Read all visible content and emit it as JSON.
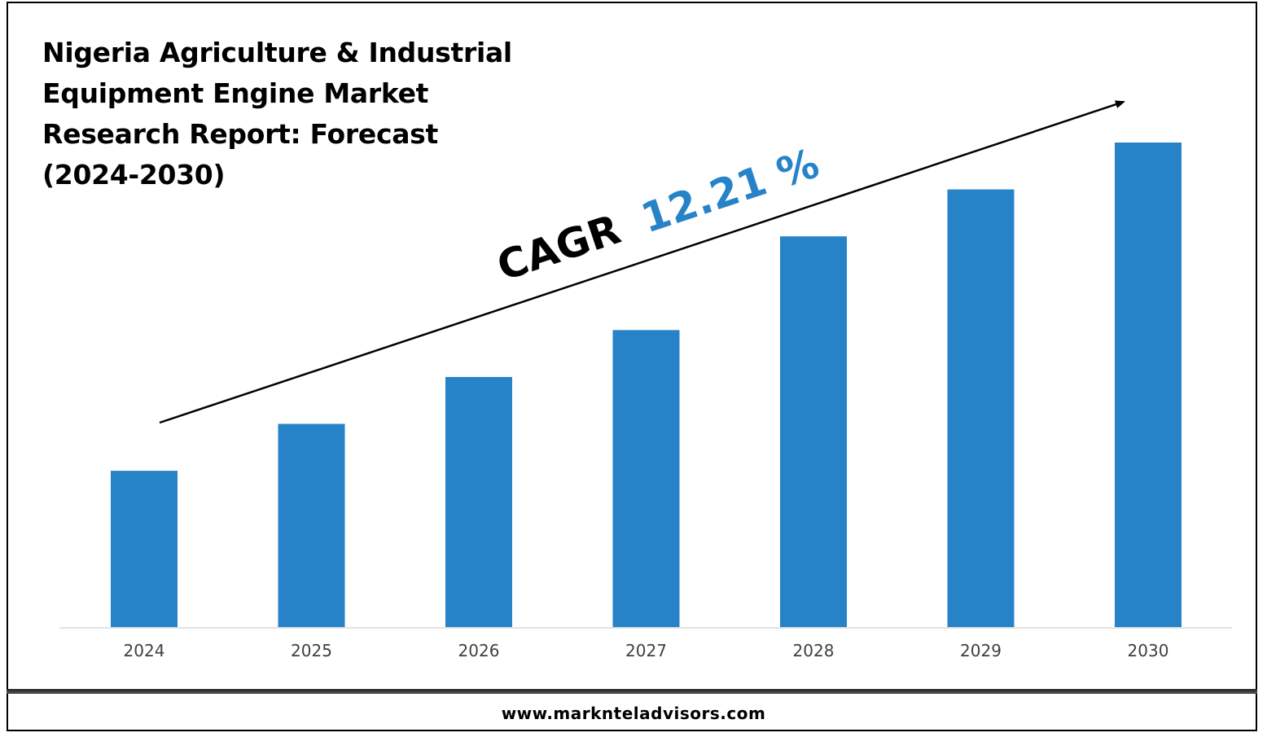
{
  "title_lines": [
    "Nigeria Agriculture & Industrial",
    "Equipment Engine Market",
    "Research Report: Forecast",
    "(2024-2030)"
  ],
  "annotation": {
    "cagr_label": "CAGR",
    "cagr_value": "12.21 %",
    "cagr_label_color": "#000000",
    "cagr_value_color": "#2783C7"
  },
  "footer": {
    "website": "www.marknteladvisors.com"
  },
  "colors": {
    "bar": "#2783C7",
    "axis": "#d9d9d9",
    "arrow": "#000000"
  },
  "chart_data": {
    "type": "bar",
    "categories": [
      "2024",
      "2025",
      "2026",
      "2027",
      "2028",
      "2029",
      "2030"
    ],
    "values": [
      1.0,
      1.3,
      1.6,
      1.9,
      2.5,
      2.8,
      3.1
    ],
    "ylim": [
      0,
      3.1
    ],
    "grid": false,
    "legend": "none",
    "trend_arrow": true
  }
}
